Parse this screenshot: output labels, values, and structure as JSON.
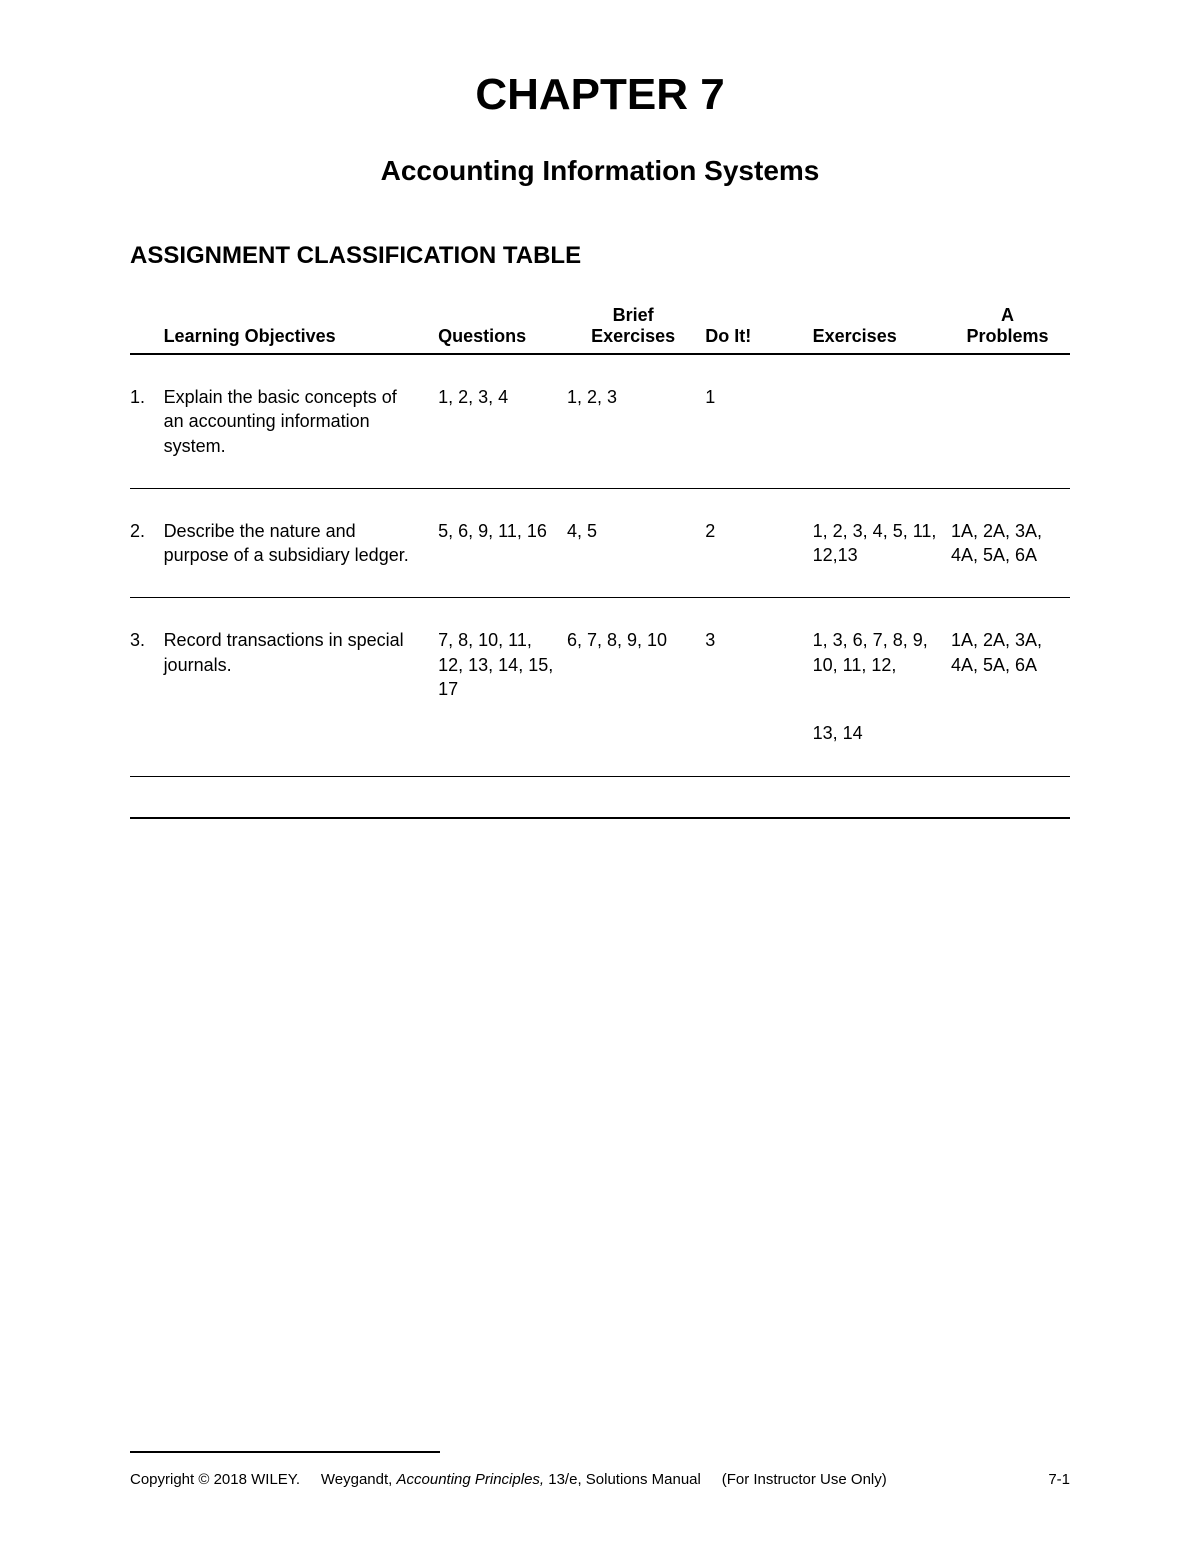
{
  "chapter_title": "CHAPTER 7",
  "chapter_subtitle": "Accounting Information Systems",
  "section_heading": "ASSIGNMENT CLASSIFICATION TABLE",
  "headers": {
    "objectives": "Learning Objectives",
    "questions": "Questions",
    "brief_top": "Brief",
    "brief_bottom": "Exercises",
    "doit": "Do It!",
    "exercises": "Exercises",
    "a_top": "A",
    "a_bottom": "Problems"
  },
  "rows": [
    {
      "num": "1.",
      "objective": "Explain the basic concepts of an accounting information system.",
      "questions": "1, 2, 3, 4",
      "brief": "1, 2, 3",
      "doit": "1",
      "exercises": "",
      "problems": ""
    },
    {
      "num": "2.",
      "objective": "Describe the nature and purpose of a subsidiary ledger.",
      "questions": "5, 6, 9, 11, 16",
      "brief": "4, 5",
      "doit": "2",
      "exercises": "1, 2, 3, 4, 5, 11, 12,13",
      "problems": "1A, 2A, 3A, 4A, 5A, 6A"
    },
    {
      "num": "3.",
      "objective": "Record transactions in special journals.",
      "questions": "7, 8, 10, 11, 12, 13, 14, 15, 17",
      "brief": "6, 7, 8, 9, 10",
      "doit": "3",
      "exercises": "1, 3, 6, 7, 8, 9, 10, 11, 12,",
      "exercises_extra": "13, 14",
      "problems": "1A, 2A, 3A, 4A, 5A, 6A"
    }
  ],
  "footer": {
    "copyright": "Copyright © 2018 WILEY.",
    "author": "Weygandt, ",
    "title_italic": "Accounting Principles,",
    "edition": " 13/e, Solutions Manual",
    "note": "(For Instructor Use Only)",
    "page": "7-1"
  }
}
